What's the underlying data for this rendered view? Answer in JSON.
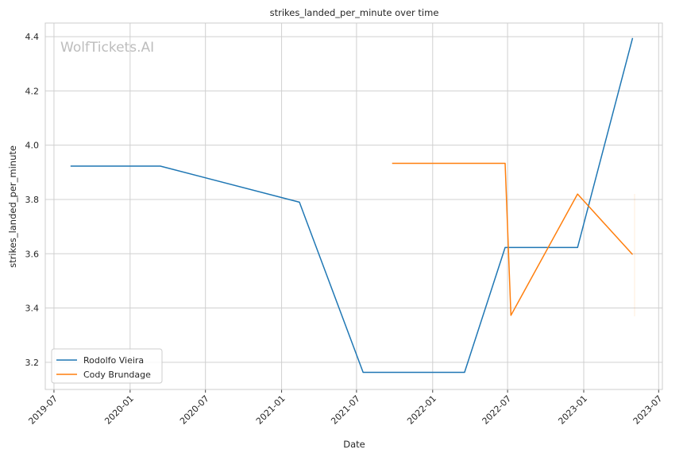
{
  "chart_data": {
    "type": "line",
    "title": "strikes_landed_per_minute over time",
    "xlabel": "Date",
    "ylabel": "strikes_landed_per_minute",
    "watermark": "WolfTickets.AI",
    "x_ticks": [
      "2019-07",
      "2020-01",
      "2020-07",
      "2021-01",
      "2021-07",
      "2022-01",
      "2022-07",
      "2023-01",
      "2023-07"
    ],
    "y_ticks": [
      3.2,
      3.4,
      3.6,
      3.8,
      4.0,
      4.2,
      4.4
    ],
    "xlim": [
      "2019-06-10",
      "2023-07-10"
    ],
    "ylim": [
      3.1,
      4.45
    ],
    "grid": true,
    "legend_position": "lower-left",
    "colors": {
      "Rodolfo Vieira": "#1f77b4",
      "Cody Brundage": "#ff7f0e"
    },
    "series": [
      {
        "name": "Rodolfo Vieira",
        "points": [
          [
            "2019-08-10",
            3.923
          ],
          [
            "2020-03-14",
            3.923
          ],
          [
            "2021-02-13",
            3.79
          ],
          [
            "2021-07-17",
            3.163
          ],
          [
            "2022-03-19",
            3.163
          ],
          [
            "2022-06-25",
            3.623
          ],
          [
            "2022-12-17",
            3.623
          ],
          [
            "2023-04-29",
            4.395
          ]
        ]
      },
      {
        "name": "Cody Brundage",
        "points": [
          [
            "2021-09-25",
            3.933
          ],
          [
            "2022-06-25",
            3.933
          ],
          [
            "2022-07-09",
            3.373
          ],
          [
            "2022-12-17",
            3.82
          ],
          [
            "2023-04-29",
            3.597
          ]
        ]
      }
    ]
  }
}
